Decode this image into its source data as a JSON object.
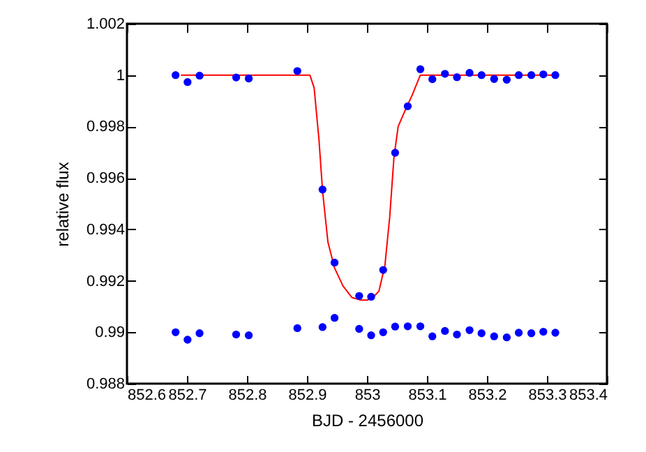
{
  "chart_data": {
    "type": "scatter",
    "xlabel": "BJD - 2456000",
    "ylabel": "relative flux",
    "xlim": [
      852.6,
      853.4
    ],
    "ylim": [
      0.988,
      1.002
    ],
    "xticks": [
      852.6,
      852.7,
      852.8,
      852.9,
      853,
      853.1,
      853.2,
      853.3,
      853.4
    ],
    "yticks": [
      0.988,
      0.99,
      0.992,
      0.994,
      0.996,
      0.998,
      1,
      1.002
    ],
    "grid": false,
    "marker": "circle",
    "series": [
      {
        "type": "line",
        "marker": "none",
        "color": "#ff0000",
        "x": [
          852.69,
          852.905,
          852.912,
          852.92,
          852.926,
          852.935,
          852.946,
          852.96,
          852.975,
          852.99,
          853.0,
          853.01,
          853.02,
          853.03,
          853.038,
          853.045,
          853.052,
          853.065,
          853.075,
          853.089,
          853.314
        ],
        "values": [
          1,
          1,
          0.9995,
          0.9975,
          0.9955,
          0.9935,
          0.9925,
          0.9918,
          0.99135,
          0.99125,
          0.99125,
          0.99135,
          0.9916,
          0.9926,
          0.9945,
          0.9968,
          0.998,
          0.9987,
          0.9992,
          1,
          1
        ]
      },
      {
        "color": "#0000ff",
        "x": [
          852.681,
          852.701,
          852.721,
          852.782,
          852.803,
          852.884,
          852.926,
          852.946,
          852.987,
          853.007,
          853.027,
          853.047,
          853.068,
          853.089,
          853.109,
          853.13,
          853.15,
          853.171,
          853.191,
          853.212,
          853.233,
          853.253,
          853.274,
          853.294,
          853.314
        ],
        "values": [
          1.0,
          0.99973,
          0.99998,
          0.99991,
          0.99987,
          1.00016,
          0.99555,
          0.99271,
          0.99141,
          0.99138,
          0.99242,
          0.99698,
          0.99879,
          1.00023,
          0.99984,
          1.00005,
          0.99992,
          1.00009,
          1.0,
          0.99985,
          0.99982,
          1.0,
          1.0,
          1.00003,
          1.0
        ]
      },
      {
        "color": "#0000ff",
        "x": [
          852.681,
          852.701,
          852.721,
          852.782,
          852.803,
          852.884,
          852.926,
          852.946,
          852.987,
          853.007,
          853.027,
          853.047,
          853.068,
          853.089,
          853.109,
          853.13,
          853.15,
          853.171,
          853.191,
          853.212,
          853.233,
          853.253,
          853.274,
          853.294,
          853.314
        ],
        "values": [
          0.99,
          0.98971,
          0.98996,
          0.98991,
          0.98988,
          0.99016,
          0.9902,
          0.99056,
          0.99013,
          0.98988,
          0.99,
          0.99022,
          0.99023,
          0.99023,
          0.98984,
          0.99005,
          0.98991,
          0.99008,
          0.98996,
          0.98984,
          0.9898,
          0.98998,
          0.98996,
          0.99002,
          0.98998
        ]
      }
    ]
  }
}
